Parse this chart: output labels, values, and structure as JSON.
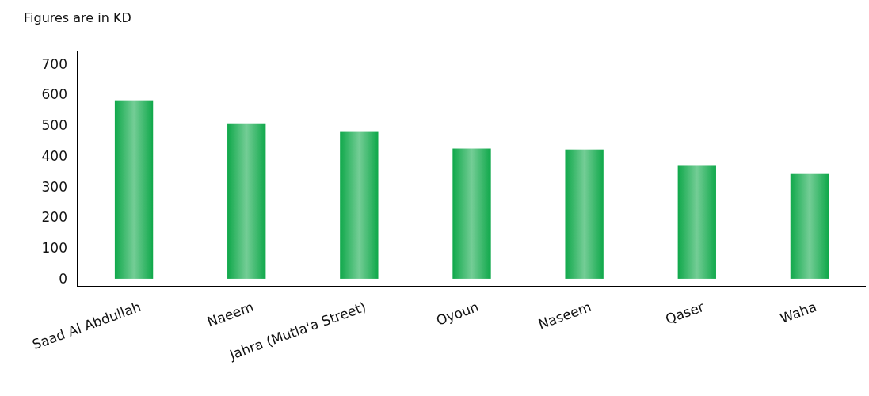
{
  "chart_data": {
    "type": "bar",
    "ylabel": "Figures are in KD",
    "categories": [
      "Saad Al Abdullah",
      "Naeem",
      "Jahra (Mutla'a Street)",
      "Oyoun",
      "Naseem",
      "Qaser",
      "Waha"
    ],
    "values": [
      581,
      506,
      478,
      424,
      421,
      370,
      341
    ],
    "color": "#0fa84a",
    "ylim": [
      -26,
      740
    ],
    "yticks": [
      0,
      100,
      200,
      300,
      400,
      500,
      600,
      700
    ],
    "grid": false
  }
}
